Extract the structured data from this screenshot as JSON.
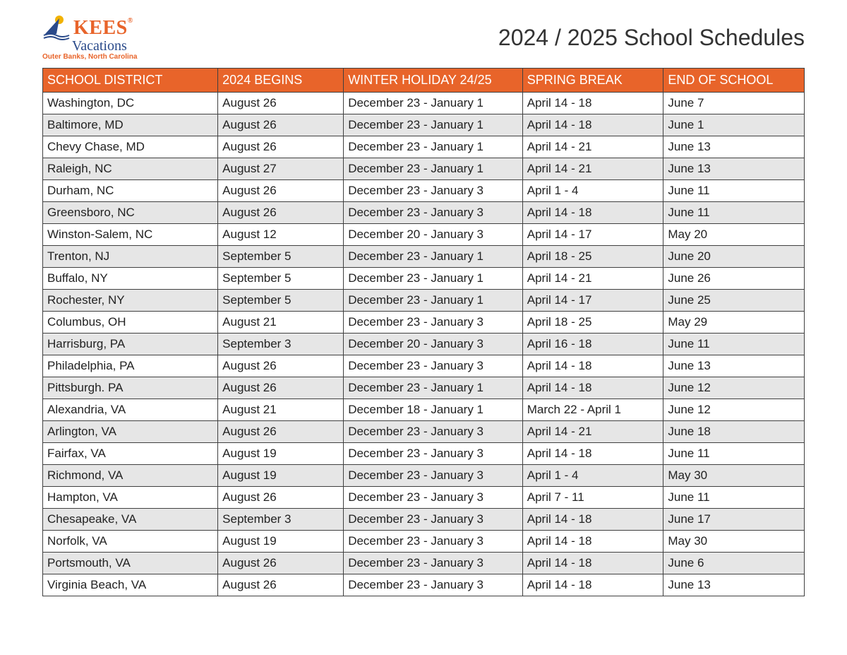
{
  "logo": {
    "brand": "KEES",
    "reg": "®",
    "sub": "Vacations",
    "location": "Outer Banks, North Carolina",
    "brand_color": "#e8642a",
    "sub_color": "#2a4a8a",
    "sun_color": "#f2b200",
    "wave_color": "#2a4a8a"
  },
  "title": "2024 / 2025 School Schedules",
  "table": {
    "header_bg": "#e8642a",
    "header_fg": "#ffffff",
    "row_odd_bg": "#ffffff",
    "row_even_bg": "#e6e6e6",
    "border_color": "#404040",
    "columns": [
      "SCHOOL DISTRICT",
      "2024 BEGINS",
      "WINTER HOLIDAY 24/25",
      "SPRING BREAK",
      "END OF SCHOOL"
    ],
    "rows": [
      [
        "Washington, DC",
        "August 26",
        "December 23 - January 1",
        "April 14 - 18",
        "June 7"
      ],
      [
        "Baltimore, MD",
        "August 26",
        "December 23 - January 1",
        "April 14 - 18",
        "June 1"
      ],
      [
        "Chevy Chase, MD",
        "August 26",
        "December 23 - January 1",
        "April 14 - 21",
        "June 13"
      ],
      [
        "Raleigh, NC",
        "August 27",
        "December 23 - January 1",
        "April 14 - 21",
        "June 13"
      ],
      [
        "Durham, NC",
        "August 26",
        "December 23 - January 3",
        "April 1 - 4",
        "June 11"
      ],
      [
        "Greensboro, NC",
        "August 26",
        "December 23 - January 3",
        "April 14 - 18",
        "June 11"
      ],
      [
        "Winston-Salem, NC",
        "August 12",
        "December 20 - January 3",
        "April 14 - 17",
        "May 20"
      ],
      [
        "Trenton, NJ",
        "September 5",
        "December 23 - January 1",
        "April 18 - 25",
        "June 20"
      ],
      [
        "Buffalo, NY",
        "September 5",
        "December 23 - January 1",
        "April 14 - 21",
        "June 26"
      ],
      [
        "Rochester, NY",
        "September 5",
        "December 23 - January 1",
        "April 14 - 17",
        "June 25"
      ],
      [
        "Columbus, OH",
        "August 21",
        "December 23 - January 3",
        "April 18 - 25",
        "May 29"
      ],
      [
        "Harrisburg, PA",
        "September 3",
        "December 20 - January 3",
        "April 16 - 18",
        "June 11"
      ],
      [
        "Philadelphia, PA",
        "August 26",
        "December 23 - January 3",
        "April 14 - 18",
        "June 13"
      ],
      [
        "Pittsburgh. PA",
        "August 26",
        "December 23 - January 1",
        "April 14 - 18",
        "June 12"
      ],
      [
        "Alexandria, VA",
        "August 21",
        "December 18 - January 1",
        "March 22 - April 1",
        "June 12"
      ],
      [
        "Arlington, VA",
        "August 26",
        "December 23 - January 3",
        "April 14 - 21",
        "June 18"
      ],
      [
        "Fairfax, VA",
        "August 19",
        "December 23 - January 3",
        "April 14 - 18",
        "June 11"
      ],
      [
        "Richmond, VA",
        "August 19",
        "December 23 - January 3",
        "April 1 - 4",
        "May 30"
      ],
      [
        "Hampton, VA",
        "August 26",
        "December 23 - January 3",
        "April 7 - 11",
        "June 11"
      ],
      [
        "Chesapeake, VA",
        "September 3",
        "December 23 - January 3",
        "April 14 - 18",
        "June 17"
      ],
      [
        "Norfolk, VA",
        "August 19",
        "December 23 - January 3",
        "April 14 - 18",
        "May 30"
      ],
      [
        "Portsmouth, VA",
        "August 26",
        "December 23 - January 3",
        "April 14 - 18",
        "June 6"
      ],
      [
        "Virginia Beach, VA",
        "August 26",
        "December 23 - January 3",
        "April 14 - 18",
        "June 13"
      ]
    ]
  }
}
